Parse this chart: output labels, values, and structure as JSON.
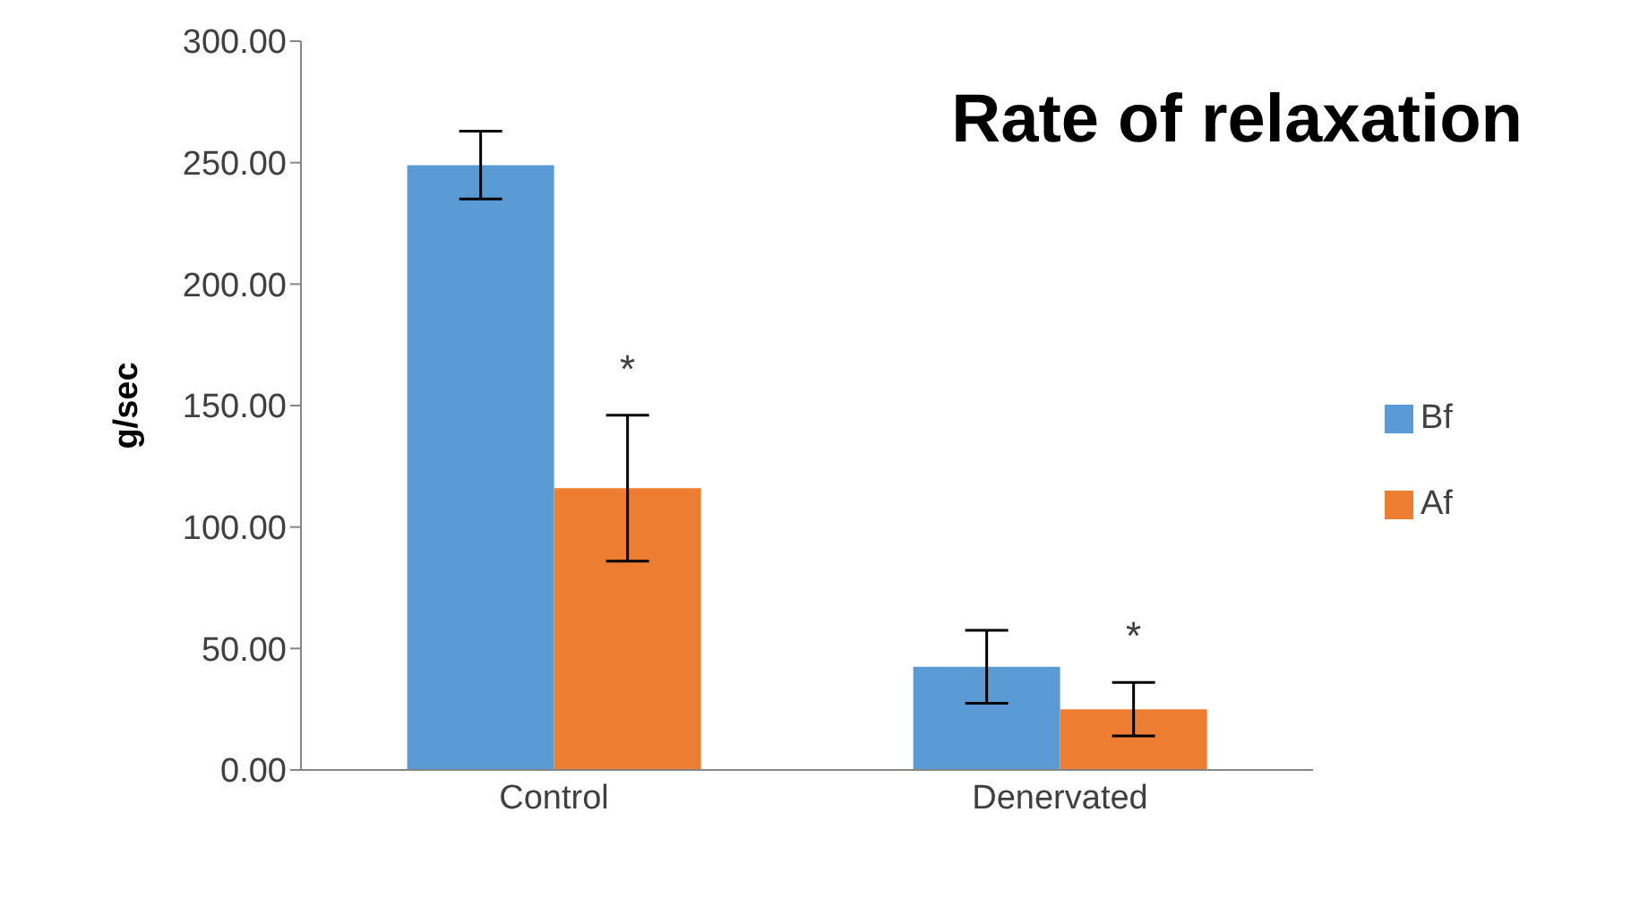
{
  "chart_data": {
    "type": "bar",
    "title": "Rate of relaxation",
    "ylabel": "g/sec",
    "categories": [
      "Control",
      "Denervated"
    ],
    "series": [
      {
        "name": "Bf",
        "color": "#5b9bd5",
        "values": [
          249,
          42.5
        ],
        "errors": [
          14,
          15
        ]
      },
      {
        "name": "Af",
        "color": "#ed7d31",
        "values": [
          116,
          25
        ],
        "errors": [
          30,
          11
        ]
      }
    ],
    "ylim": [
      0,
      300
    ],
    "yticks": [
      {
        "value": 0,
        "label": "0.00"
      },
      {
        "value": 50,
        "label": "50.00"
      },
      {
        "value": 100,
        "label": "100.00"
      },
      {
        "value": 150,
        "label": "150.00"
      },
      {
        "value": 200,
        "label": "200.00"
      },
      {
        "value": 250,
        "label": "250.00"
      },
      {
        "value": 300,
        "label": "300.00"
      }
    ],
    "annotations": [
      {
        "text": "*",
        "x": "Control",
        "y": 146
      },
      {
        "text": "*",
        "x": "Denervated",
        "y": 36
      }
    ],
    "grid": false,
    "legend": "right"
  }
}
